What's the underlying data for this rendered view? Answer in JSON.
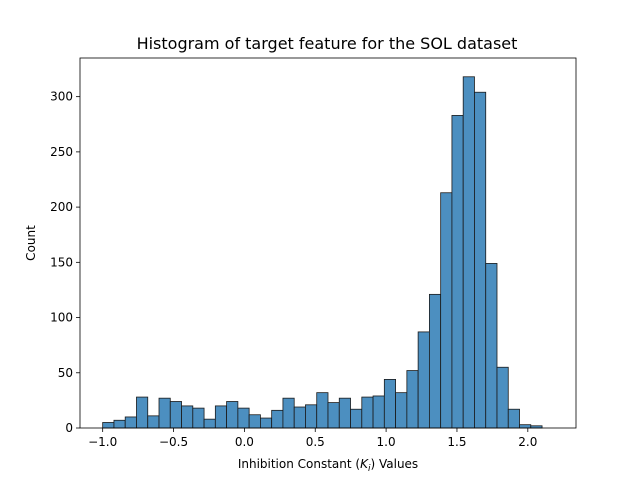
{
  "chart_data": {
    "type": "bar",
    "title": "Histogram of target feature for the SOL dataset",
    "xlabel_prefix": "Inhibition Constant (",
    "xlabel_symbol": "K",
    "xlabel_subscript": "i",
    "xlabel_suffix": ") Values",
    "ylabel": "Count",
    "xlim": [
      -1.16,
      2.34
    ],
    "ylim": [
      0,
      335
    ],
    "xticks": [
      -1.0,
      -0.5,
      0.0,
      0.5,
      1.0,
      1.5,
      2.0
    ],
    "xtick_labels": [
      "−1.0",
      "−0.5",
      "0.0",
      "0.5",
      "1.0",
      "1.5",
      "2.0"
    ],
    "yticks": [
      0,
      50,
      100,
      150,
      200,
      250,
      300
    ],
    "ytick_labels": [
      "0",
      "50",
      "100",
      "150",
      "200",
      "250",
      "300"
    ],
    "bin_start": -1.0,
    "bin_width": 0.0795,
    "counts": [
      5,
      7,
      10,
      28,
      11,
      27,
      24,
      20,
      18,
      8,
      20,
      24,
      18,
      12,
      9,
      16,
      27,
      19,
      21,
      32,
      23,
      27,
      17,
      28,
      29,
      44,
      32,
      52,
      87,
      121,
      213,
      283,
      318,
      304,
      149,
      55,
      17,
      3,
      2
    ],
    "bar_color": "#4c8fc0",
    "grid": false
  }
}
